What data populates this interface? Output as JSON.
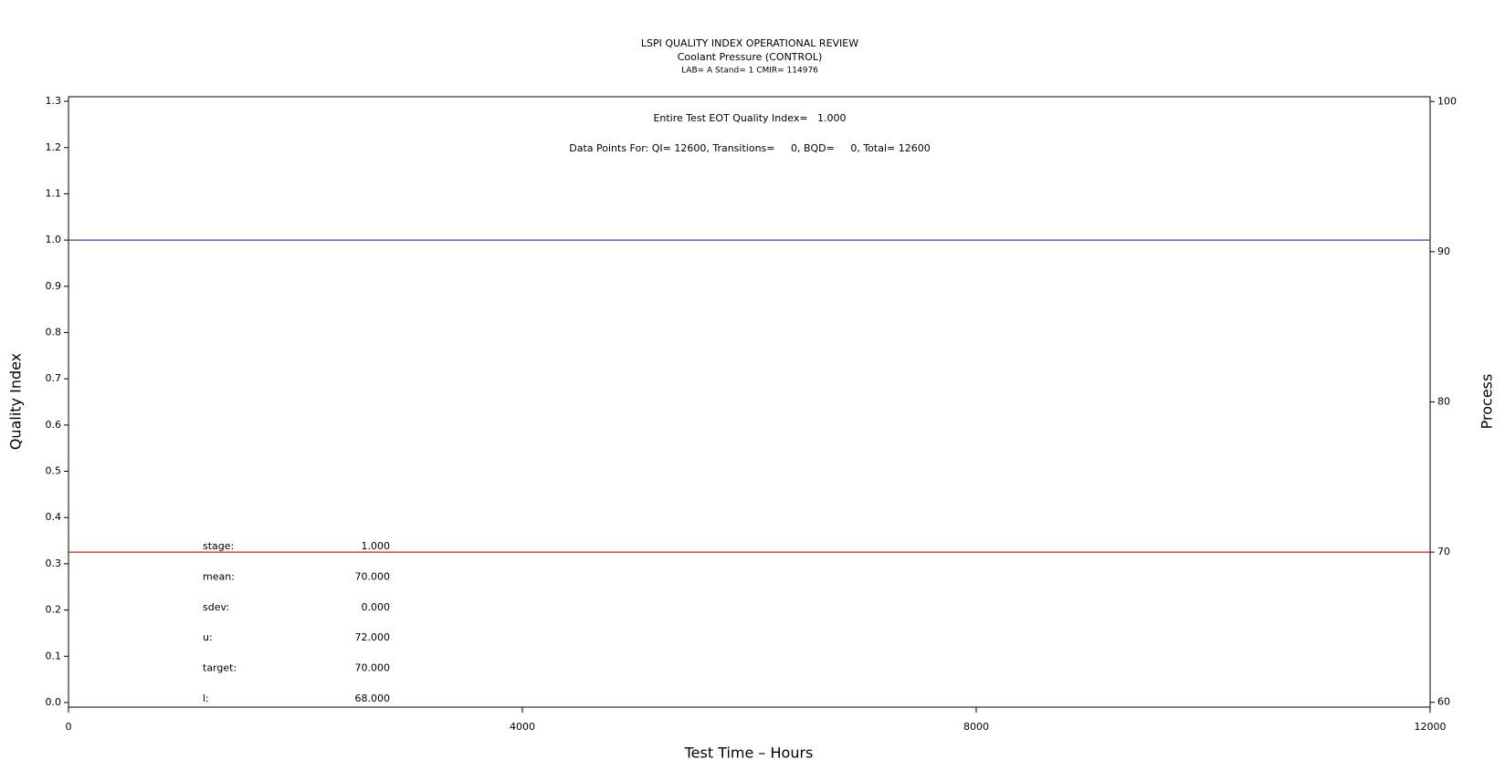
{
  "chart_data": {
    "type": "line",
    "title": "LSPI QUALITY INDEX OPERATIONAL REVIEW",
    "subtitle": "Coolant Pressure (CONTROL)",
    "subtitle2": "LAB= A Stand= 1 CMIR= 114976",
    "annotations": [
      "Entire Test EOT Quality Index=   1.000",
      "Data Points For: QI= 12600, Transitions=     0, BQD=     0, Total= 12600"
    ],
    "stats": [
      {
        "label": "stage:",
        "value": "1.000"
      },
      {
        "label": "mean:",
        "value": "70.000"
      },
      {
        "label": "sdev:",
        "value": "0.000"
      },
      {
        "label": "u:",
        "value": "72.000"
      },
      {
        "label": "target:",
        "value": "70.000"
      },
      {
        "label": "l:",
        "value": "68.000"
      }
    ],
    "xlabel": "Test Time – Hours",
    "ylabel": "Quality Index",
    "y2label": "Process",
    "x": [
      0,
      12000
    ],
    "series": [
      {
        "color": "#3b3bb0",
        "values": [
          1.0,
          1.0
        ]
      },
      {
        "color": "#c02020",
        "values": [
          70,
          70
        ],
        "axis": "y2"
      }
    ],
    "xlim": [
      0,
      12000
    ],
    "xticks": [
      0,
      4000,
      8000,
      12000
    ],
    "ylim": [
      -0.01,
      1.31
    ],
    "yticks": [
      {
        "value": 0,
        "label": "0.0"
      },
      0.1,
      0.2,
      0.3,
      0.4,
      0.5,
      0.6,
      0.7,
      0.8,
      0.9,
      {
        "value": 1,
        "label": "1.0"
      },
      1.1,
      1.2,
      1.3
    ],
    "y2lim": [
      59.68,
      100.32
    ],
    "y2ticks": [
      60,
      70,
      80,
      90,
      100
    ]
  }
}
